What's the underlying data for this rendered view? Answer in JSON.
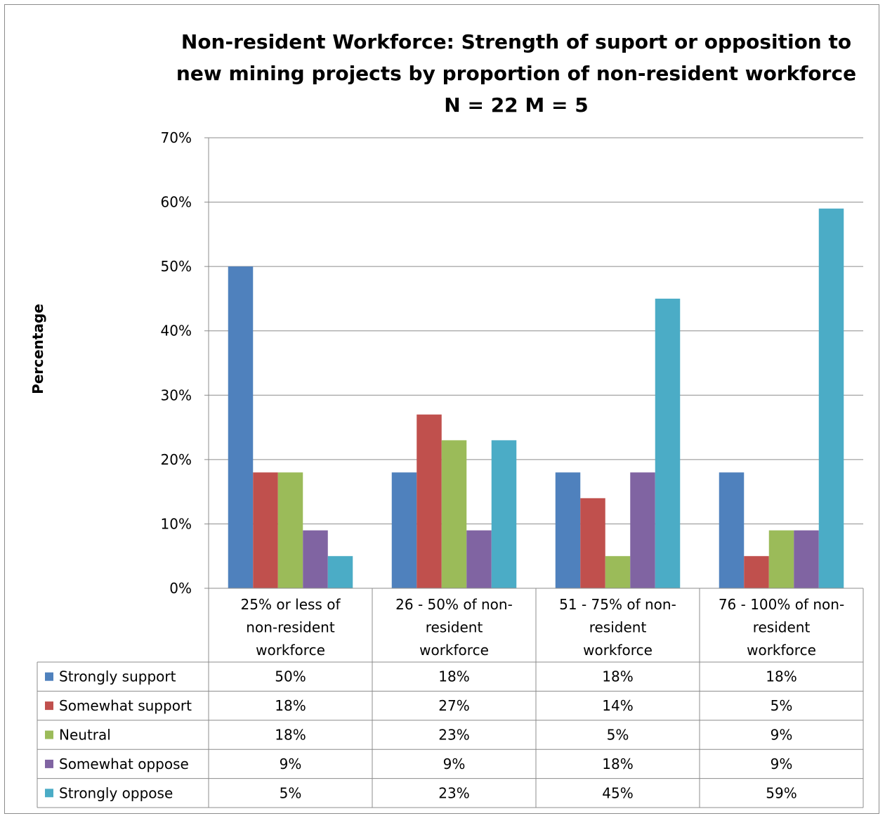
{
  "chart_data": {
    "type": "bar",
    "title": "Non-resident Workforce: Strength of suport or opposition to new mining projects by proportion of non-resident workforce N = 22 M = 5",
    "title_lines": [
      "Non-resident Workforce: Strength of suport or opposition to",
      "new mining projects by proportion of non-resident workforce",
      "N = 22 M = 5"
    ],
    "ylabel": "Percentage",
    "xlabel": "",
    "ylim": [
      0,
      70
    ],
    "yticks": [
      0,
      10,
      20,
      30,
      40,
      50,
      60,
      70
    ],
    "tick_suffix": "%",
    "grid": true,
    "legend_placement": "data-table",
    "categories": [
      "25% or less of non-resident workforce",
      "26 - 50% of non-resident workforce",
      "51 - 75% of non-resident workforce",
      "76 - 100% of non-resident workforce"
    ],
    "category_lines": [
      [
        "25% or less of",
        "non-resident",
        "workforce"
      ],
      [
        "26 - 50% of non-",
        "resident",
        "workforce"
      ],
      [
        "51 - 75% of non-",
        "resident",
        "workforce"
      ],
      [
        "76 - 100% of non-",
        "resident",
        "workforce"
      ]
    ],
    "series": [
      {
        "name": "Strongly support",
        "color": "#4F81BD",
        "values": [
          50,
          18,
          18,
          18
        ],
        "labels": [
          "50%",
          "18%",
          "18%",
          "18%"
        ]
      },
      {
        "name": "Somewhat support",
        "color": "#C0504D",
        "values": [
          18,
          27,
          14,
          5
        ],
        "labels": [
          "18%",
          "27%",
          "14%",
          "5%"
        ]
      },
      {
        "name": "Neutral",
        "color": "#9BBB59",
        "values": [
          18,
          23,
          5,
          9
        ],
        "labels": [
          "18%",
          "23%",
          "5%",
          "9%"
        ]
      },
      {
        "name": "Somewhat oppose",
        "color": "#8064A2",
        "values": [
          9,
          9,
          18,
          9
        ],
        "labels": [
          "9%",
          "9%",
          "18%",
          "9%"
        ]
      },
      {
        "name": "Strongly oppose",
        "color": "#4BACC6",
        "values": [
          5,
          23,
          45,
          59
        ],
        "labels": [
          "5%",
          "23%",
          "45%",
          "59%"
        ]
      }
    ]
  }
}
